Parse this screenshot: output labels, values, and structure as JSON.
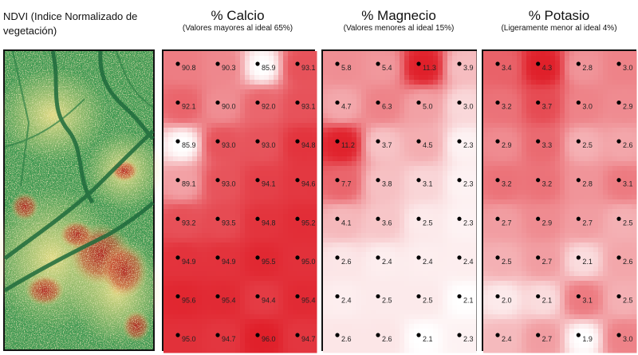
{
  "ndvi": {
    "title": "NDVI (Indice Normalizado de vegetación)"
  },
  "panels": [
    {
      "key": "calcio",
      "title": "% Calcio",
      "subtitle": "(Valores mayores al ideal 65%)",
      "accent": "#e0202a",
      "grid": [
        [
          90.8,
          90.3,
          85.9,
          93.1
        ],
        [
          92.1,
          90.0,
          92.0,
          93.1
        ],
        [
          85.9,
          93.0,
          93.0,
          94.8
        ],
        [
          89.1,
          93.0,
          94.1,
          94.6
        ],
        [
          93.2,
          93.5,
          94.8,
          95.2
        ],
        [
          94.9,
          94.9,
          95.5,
          95.0
        ],
        [
          95.6,
          95.4,
          94.4,
          95.4
        ],
        [
          95.0,
          94.7,
          96.0,
          94.7
        ]
      ],
      "labels": [
        [
          "90.8",
          "90.3",
          "85.9",
          "93.1"
        ],
        [
          "92.1",
          "90.0",
          "92.0",
          "93.1"
        ],
        [
          "85.9",
          "93.0",
          "93.0",
          "94.8"
        ],
        [
          "89.1",
          "93.0",
          "94.1",
          "94.6"
        ],
        [
          "93.2",
          "93.5",
          "94.8",
          "95.2"
        ],
        [
          "94.9",
          "94.9",
          "95.5",
          "95.0"
        ],
        [
          "95.6",
          "95.4",
          "94.4",
          "95.4"
        ],
        [
          "95.0",
          "94.7",
          "96.0",
          "94.7"
        ]
      ]
    },
    {
      "key": "magnecio",
      "title": "% Magnecio",
      "subtitle": "(Valores menores al ideal 15%)",
      "accent": "#e0202a",
      "grid": [
        [
          5.8,
          5.4,
          11.3,
          3.9
        ],
        [
          4.7,
          6.3,
          5.0,
          3.0
        ],
        [
          11.2,
          3.7,
          4.5,
          2.3
        ],
        [
          7.7,
          3.8,
          3.1,
          2.3
        ],
        [
          4.1,
          3.6,
          2.5,
          2.3
        ],
        [
          2.6,
          2.4,
          2.4,
          2.4
        ],
        [
          2.4,
          2.5,
          2.5,
          2.1
        ],
        [
          2.6,
          2.6,
          2.1,
          2.3
        ]
      ],
      "labels": [
        [
          "5.8",
          "5.4",
          "11.3",
          "3.9"
        ],
        [
          "4.7",
          "6.3",
          "5.0",
          "3.0"
        ],
        [
          "11.2",
          "3.7",
          "4.5",
          "2.3"
        ],
        [
          "7.7",
          "3.8",
          "3.1",
          "2.3"
        ],
        [
          "4.1",
          "3.6",
          "2.5",
          "2.3"
        ],
        [
          "2.6",
          "2.4",
          "2.4",
          "2.4"
        ],
        [
          "2.4",
          "2.5",
          "2.5",
          "2.1"
        ],
        [
          "2.6",
          "2.6",
          "2.1",
          "2.3"
        ]
      ]
    },
    {
      "key": "potasio",
      "title": "% Potasio",
      "subtitle": "(Ligeramente menor al ideal 4%)",
      "accent": "#e0202a",
      "grid": [
        [
          3.4,
          4.3,
          2.8,
          3.0
        ],
        [
          3.2,
          3.7,
          3.0,
          2.9
        ],
        [
          2.9,
          3.3,
          2.5,
          2.6
        ],
        [
          3.2,
          3.2,
          2.8,
          3.1
        ],
        [
          2.7,
          2.9,
          2.7,
          2.5
        ],
        [
          2.5,
          2.7,
          2.1,
          2.6
        ],
        [
          2.0,
          2.1,
          3.1,
          2.5
        ],
        [
          2.4,
          2.7,
          1.9,
          3.0
        ]
      ],
      "labels": [
        [
          "3.4",
          "4.3",
          "2.8",
          "3.0"
        ],
        [
          "3.2",
          "3.7",
          "3.0",
          "2.9"
        ],
        [
          "2.9",
          "3.3",
          "2.5",
          "2.6"
        ],
        [
          "3.2",
          "3.2",
          "2.8",
          "3.1"
        ],
        [
          "2.7",
          "2.9",
          "2.7",
          "2.5"
        ],
        [
          "2.5",
          "2.7",
          "2.1",
          "2.6"
        ],
        [
          "2.0",
          "2.1",
          "3.1",
          "2.5"
        ],
        [
          "2.4",
          "2.7",
          "1.9",
          "3.0"
        ]
      ]
    }
  ]
}
